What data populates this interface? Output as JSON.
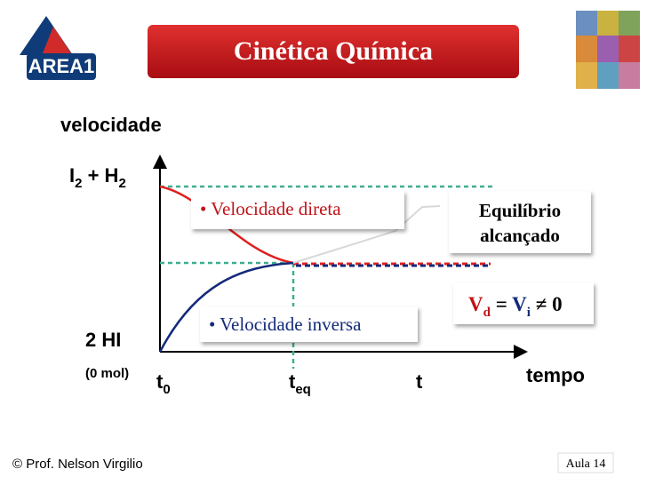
{
  "header": {
    "title": "Cinética Química",
    "logo": "AREA1"
  },
  "diagram": {
    "y_axis_label": "velocidade",
    "x_axis_label": "tempo",
    "reactants": {
      "a": "I",
      "a_sub": "2",
      "op": " + ",
      "b": "H",
      "b_sub": "2"
    },
    "product": "2 HI",
    "product_note": "(0 mol)",
    "t0": {
      "t": "t",
      "sub": "0"
    },
    "teq": {
      "t": "t",
      "sub": "eq"
    },
    "t": "t",
    "direct_label": "• Velocidade direta",
    "inverse_label": "• Velocidade inversa",
    "equilibrium": [
      "Equilíbrio",
      "alcançado"
    ],
    "relation": {
      "v1": "V",
      "s1": "d",
      "eq": " = ",
      "v2": "V",
      "s2": "i",
      "neq": " ≠ 0"
    }
  },
  "footer": {
    "author": "© Prof. Nelson Virgilio",
    "lesson": "Aula 14"
  }
}
